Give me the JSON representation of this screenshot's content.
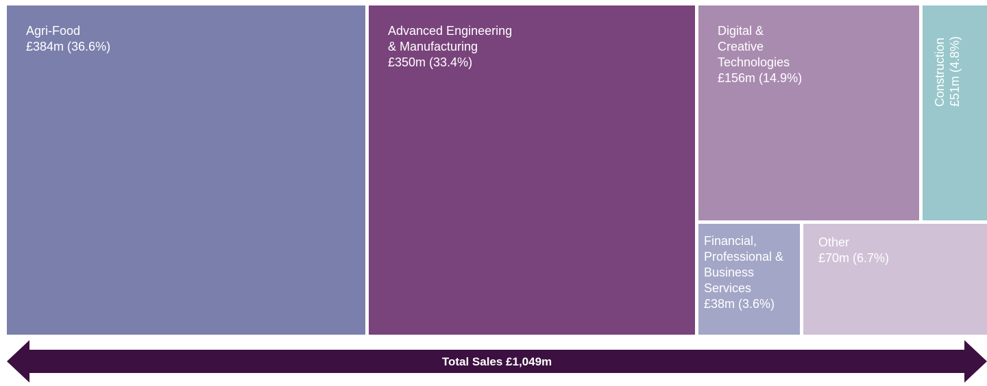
{
  "chart_data": {
    "type": "treemap",
    "colors": {
      "agri_food": "#7b7fac",
      "advanced_engineering": "#79437b",
      "digital_creative": "#a98bb0",
      "construction": "#99c7cc",
      "financial": "#a3a6c6",
      "other": "#d0c1d7",
      "arrow": "#3c1040"
    },
    "tiles": [
      {
        "label": "Agri-Food",
        "value_text": "£384m (36.6%)",
        "value": 384,
        "percent": 36.6
      },
      {
        "label": "Advanced Engineering & Manufacturing",
        "value_text": "£350m (33.4%)",
        "value": 350,
        "percent": 33.4
      },
      {
        "label": "Digital & Creative Technologies",
        "value_text": "£156m (14.9%)",
        "value": 156,
        "percent": 14.9
      },
      {
        "label": "Construction",
        "value_text": "£51m (4.8%)",
        "value": 51,
        "percent": 4.8
      },
      {
        "label": "Financial, Professional & Business Services",
        "value_text": "£38m (3.6%)",
        "value": 38,
        "percent": 3.6
      },
      {
        "label": "Other",
        "value_text": "£70m (6.7%)",
        "value": 70,
        "percent": 6.7
      }
    ],
    "total_label": "Total Sales £1,049m",
    "total": 1049
  }
}
